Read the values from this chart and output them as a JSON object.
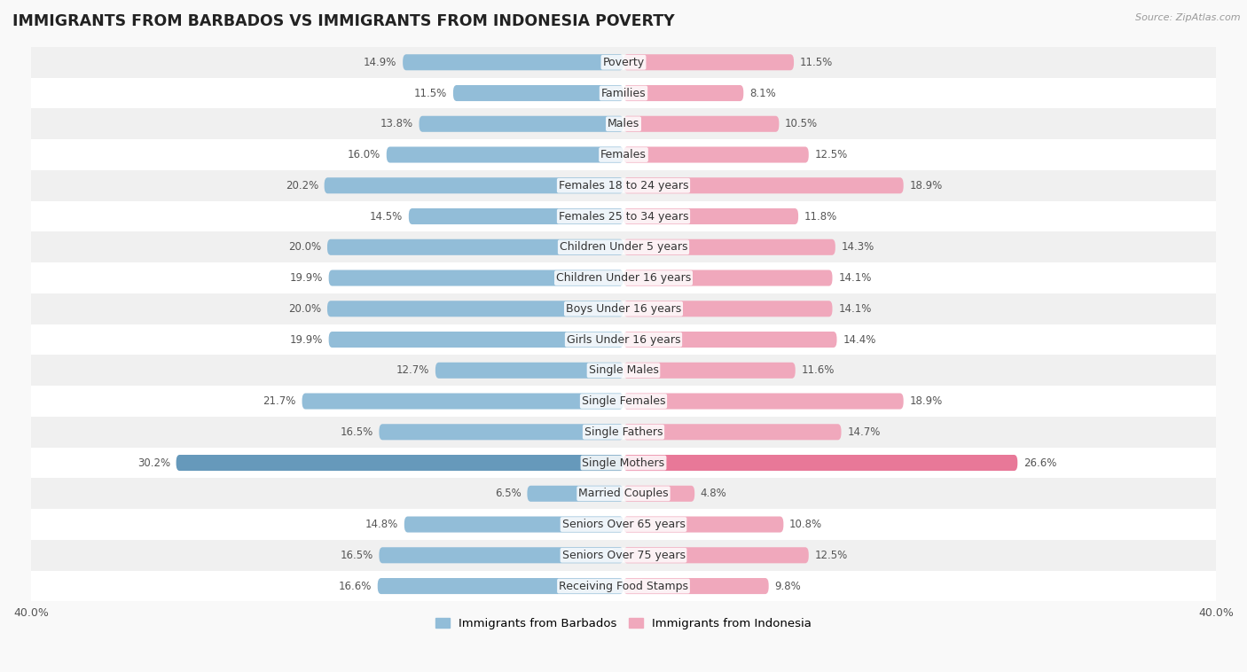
{
  "title": "IMMIGRANTS FROM BARBADOS VS IMMIGRANTS FROM INDONESIA POVERTY",
  "source": "Source: ZipAtlas.com",
  "categories": [
    "Poverty",
    "Families",
    "Males",
    "Females",
    "Females 18 to 24 years",
    "Females 25 to 34 years",
    "Children Under 5 years",
    "Children Under 16 years",
    "Boys Under 16 years",
    "Girls Under 16 years",
    "Single Males",
    "Single Females",
    "Single Fathers",
    "Single Mothers",
    "Married Couples",
    "Seniors Over 65 years",
    "Seniors Over 75 years",
    "Receiving Food Stamps"
  ],
  "barbados_values": [
    14.9,
    11.5,
    13.8,
    16.0,
    20.2,
    14.5,
    20.0,
    19.9,
    20.0,
    19.9,
    12.7,
    21.7,
    16.5,
    30.2,
    6.5,
    14.8,
    16.5,
    16.6
  ],
  "indonesia_values": [
    11.5,
    8.1,
    10.5,
    12.5,
    18.9,
    11.8,
    14.3,
    14.1,
    14.1,
    14.4,
    11.6,
    18.9,
    14.7,
    26.6,
    4.8,
    10.8,
    12.5,
    9.8
  ],
  "barbados_color": "#92bdd8",
  "indonesia_color": "#f0a8bc",
  "single_mothers_barbados_color": "#6699bb",
  "single_mothers_indonesia_color": "#e87898",
  "background_color": "#f9f9f9",
  "row_colors": [
    "#f0f0f0",
    "#ffffff"
  ],
  "xlim": 40.0,
  "legend_label_barbados": "Immigrants from Barbados",
  "legend_label_indonesia": "Immigrants from Indonesia",
  "bar_height": 0.52,
  "title_fontsize": 12.5,
  "label_fontsize": 9,
  "value_fontsize": 8.5,
  "axis_fontsize": 9
}
